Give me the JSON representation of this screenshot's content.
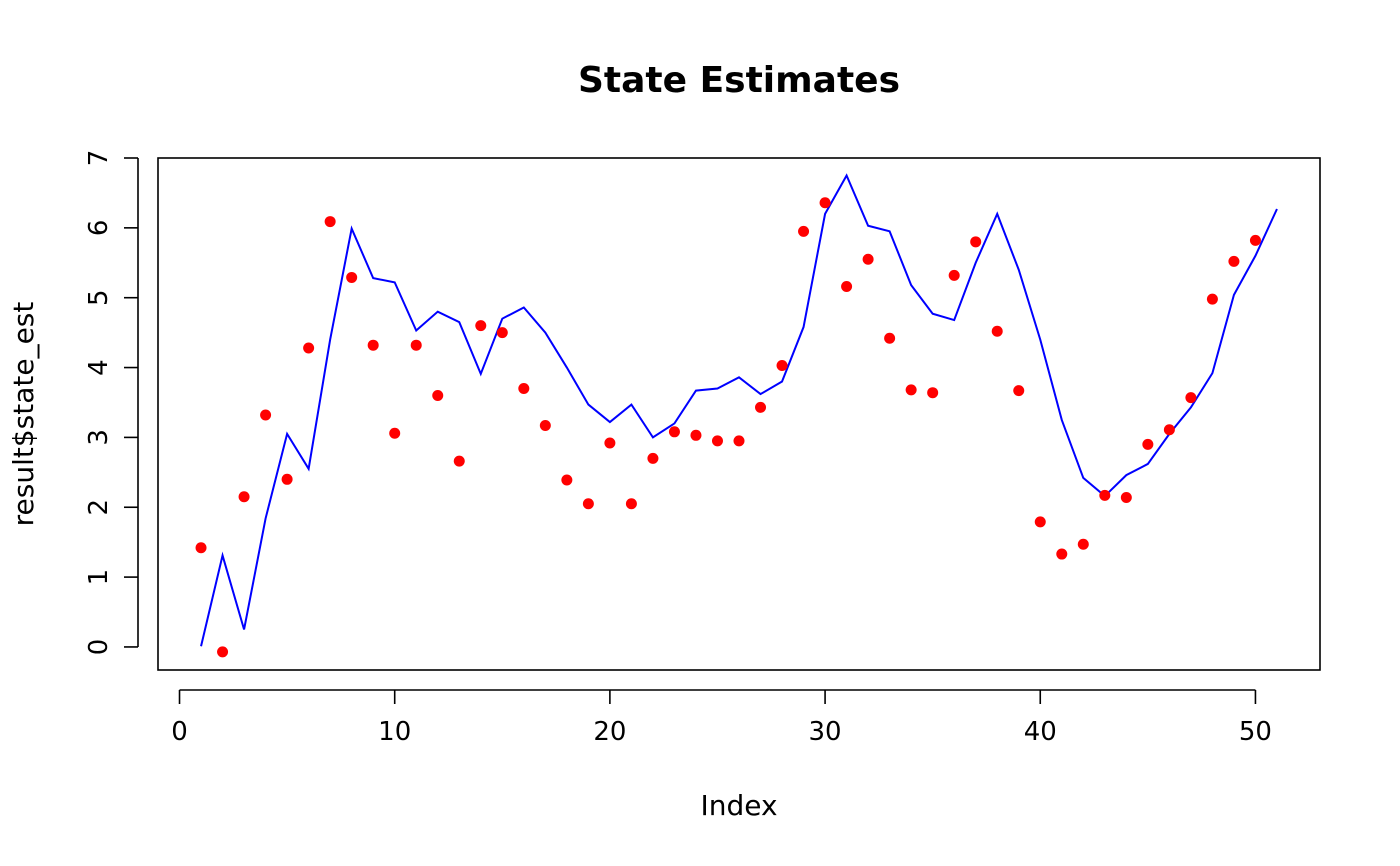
{
  "chart_data": {
    "type": "scatter+line",
    "title": "State Estimates",
    "xlabel": "Index",
    "ylabel": "result$state_est",
    "xlim": [
      -1,
      53
    ],
    "ylim": [
      -0.33,
      7
    ],
    "x_ticks": [
      0,
      10,
      20,
      30,
      40,
      50
    ],
    "x_tick_labels": [
      "0",
      "10",
      "20",
      "30",
      "40",
      "50"
    ],
    "y_ticks": [
      0,
      1,
      2,
      3,
      4,
      5,
      6,
      7
    ],
    "y_tick_labels": [
      "0",
      "1",
      "2",
      "3",
      "4",
      "5",
      "6",
      "7"
    ],
    "series": [
      {
        "name": "points",
        "kind": "points",
        "color": "#ff0000",
        "x": [
          1,
          2,
          3,
          4,
          5,
          6,
          7,
          8,
          9,
          10,
          11,
          12,
          13,
          14,
          15,
          16,
          17,
          18,
          19,
          20,
          21,
          22,
          23,
          24,
          25,
          26,
          27,
          28,
          29,
          30,
          31,
          32,
          33,
          34,
          35,
          36,
          37,
          38,
          39,
          40,
          41,
          42,
          43,
          44,
          45,
          46,
          47,
          48,
          49,
          50
        ],
        "values": [
          1.42,
          -0.07,
          2.15,
          3.32,
          2.4,
          4.28,
          6.09,
          5.29,
          4.32,
          3.06,
          4.32,
          3.6,
          2.66,
          4.6,
          4.5,
          3.7,
          3.17,
          2.39,
          2.05,
          2.92,
          2.05,
          2.7,
          3.08,
          3.03,
          2.95,
          2.95,
          3.43,
          4.03,
          5.95,
          6.36,
          5.16,
          5.55,
          4.42,
          3.68,
          3.64,
          5.32,
          5.8,
          4.52,
          3.67,
          1.79,
          1.33,
          1.47,
          2.17,
          2.14,
          2.9,
          3.11,
          3.57,
          4.98,
          5.52,
          5.82
        ]
      },
      {
        "name": "line",
        "kind": "line",
        "color": "#0000ff",
        "x": [
          1,
          2,
          3,
          4,
          5,
          6,
          7,
          8,
          9,
          10,
          11,
          12,
          13,
          14,
          15,
          16,
          17,
          18,
          19,
          20,
          21,
          22,
          23,
          24,
          25,
          26,
          27,
          28,
          29,
          30,
          31,
          32,
          33,
          34,
          35,
          36,
          37,
          38,
          39,
          40,
          41,
          42,
          43,
          44,
          45,
          46,
          47,
          48,
          49,
          50,
          51
        ],
        "values": [
          0.01,
          1.31,
          0.25,
          1.84,
          3.05,
          2.55,
          4.4,
          5.99,
          5.28,
          5.22,
          4.53,
          4.8,
          4.65,
          3.91,
          4.7,
          4.86,
          4.5,
          4.0,
          3.47,
          3.22,
          3.47,
          3.0,
          3.2,
          3.67,
          3.7,
          3.86,
          3.62,
          3.8,
          4.58,
          6.2,
          6.75,
          6.03,
          5.95,
          5.18,
          4.77,
          4.68,
          5.5,
          6.2,
          5.4,
          4.4,
          3.25,
          2.42,
          2.16,
          2.46,
          2.62,
          3.05,
          3.43,
          3.92,
          5.04,
          5.6,
          6.27
        ]
      }
    ]
  }
}
